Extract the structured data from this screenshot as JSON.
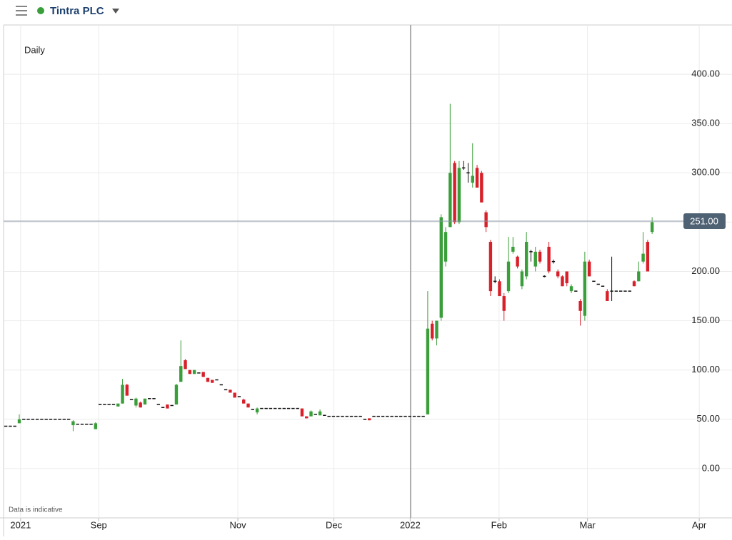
{
  "header": {
    "title": "Tintra PLC"
  },
  "chart_data": {
    "type": "candlestick",
    "subtitle": "Daily",
    "note": "Data is indicative",
    "up_color": "#3a9e3a",
    "down_color": "#d8202a",
    "flat_color": "#111111",
    "grid": true,
    "ylim": [
      -50,
      450
    ],
    "yticks": [
      {
        "value": 0,
        "label": "0.00"
      },
      {
        "value": 50,
        "label": "50.00"
      },
      {
        "value": 100,
        "label": "100.00"
      },
      {
        "value": 150,
        "label": "150.00"
      },
      {
        "value": 200,
        "label": "200.00"
      },
      {
        "value": 250,
        "label": "250.00"
      },
      {
        "value": 300,
        "label": "300.00"
      },
      {
        "value": 350,
        "label": "350.00"
      },
      {
        "value": 400,
        "label": "400.00"
      }
    ],
    "xlim": [
      -0.5,
      161
    ],
    "xticks": [
      {
        "value": 3.3,
        "label": "2021"
      },
      {
        "value": 20.7,
        "label": "Sep"
      },
      {
        "value": 51.7,
        "label": "Nov"
      },
      {
        "value": 73.1,
        "label": "Dec"
      },
      {
        "value": 90.1,
        "label": "2022"
      },
      {
        "value": 109.9,
        "label": "Feb"
      },
      {
        "value": 129.6,
        "label": "Mar"
      },
      {
        "value": 154.5,
        "label": "Apr"
      }
    ],
    "last_price": {
      "value": 251,
      "label": "251.00"
    },
    "ohlc": [
      [
        43,
        43,
        43,
        43
      ],
      [
        43,
        43,
        43,
        43
      ],
      [
        43,
        43,
        43,
        43
      ],
      [
        46,
        55,
        46,
        50
      ],
      [
        50,
        50,
        50,
        50
      ],
      [
        50,
        50,
        50,
        50
      ],
      [
        50,
        50,
        50,
        50
      ],
      [
        50,
        50,
        50,
        50
      ],
      [
        50,
        50,
        50,
        50
      ],
      [
        50,
        50,
        50,
        50
      ],
      [
        50,
        50,
        50,
        50
      ],
      [
        50,
        50,
        50,
        50
      ],
      [
        50,
        50,
        50,
        50
      ],
      [
        50,
        50,
        50,
        50
      ],
      [
        50,
        50,
        50,
        50
      ],
      [
        44,
        49,
        38,
        48
      ],
      [
        45,
        45,
        45,
        45
      ],
      [
        45,
        45,
        45,
        45
      ],
      [
        45,
        45,
        45,
        45
      ],
      [
        45,
        45,
        45,
        45
      ],
      [
        40,
        47,
        40,
        46
      ],
      [
        65,
        65,
        65,
        65
      ],
      [
        65,
        65,
        65,
        65
      ],
      [
        65,
        65,
        65,
        65
      ],
      [
        65,
        65,
        65,
        65
      ],
      [
        63,
        66,
        63,
        66
      ],
      [
        66,
        91,
        66,
        85
      ],
      [
        85,
        86,
        74,
        74
      ],
      [
        70,
        70,
        70,
        70
      ],
      [
        64,
        72,
        62,
        71
      ],
      [
        67,
        68,
        62,
        62
      ],
      [
        65,
        71,
        65,
        71
      ],
      [
        71,
        71,
        71,
        71
      ],
      [
        71,
        71,
        71,
        71
      ],
      [
        65,
        65,
        65,
        65
      ],
      [
        62,
        62,
        62,
        62
      ],
      [
        65,
        65,
        61,
        61
      ],
      [
        64,
        64,
        64,
        64
      ],
      [
        65,
        86,
        65,
        85
      ],
      [
        88,
        130,
        88,
        104
      ],
      [
        110,
        111,
        101,
        101
      ],
      [
        100,
        100,
        96,
        96
      ],
      [
        96,
        100,
        96,
        100
      ],
      [
        97,
        97,
        97,
        97
      ],
      [
        98,
        98,
        93,
        93
      ],
      [
        92,
        92,
        88,
        88
      ],
      [
        90,
        90,
        87,
        87
      ],
      [
        90,
        90,
        90,
        90
      ],
      [
        85,
        85,
        85,
        85
      ],
      [
        80,
        80,
        80,
        80
      ],
      [
        80,
        80,
        77,
        77
      ],
      [
        77,
        77,
        72,
        72
      ],
      [
        73,
        73,
        73,
        73
      ],
      [
        70,
        71,
        66,
        66
      ],
      [
        66,
        66,
        62,
        62
      ],
      [
        60,
        60,
        60,
        60
      ],
      [
        57,
        62,
        55,
        61
      ],
      [
        61,
        61,
        61,
        61
      ],
      [
        61,
        61,
        61,
        61
      ],
      [
        61,
        61,
        61,
        61
      ],
      [
        61,
        61,
        61,
        61
      ],
      [
        61,
        61,
        61,
        61
      ],
      [
        61,
        61,
        61,
        61
      ],
      [
        61,
        61,
        61,
        61
      ],
      [
        61,
        61,
        61,
        61
      ],
      [
        61,
        61,
        61,
        61
      ],
      [
        61,
        61,
        53,
        53
      ],
      [
        53,
        53,
        51,
        51
      ],
      [
        53,
        59,
        53,
        58
      ],
      [
        55,
        55,
        55,
        55
      ],
      [
        54,
        60,
        54,
        58
      ],
      [
        54,
        54,
        54,
        54
      ],
      [
        53,
        53,
        53,
        53
      ],
      [
        53,
        53,
        53,
        53
      ],
      [
        53,
        53,
        53,
        53
      ],
      [
        53,
        53,
        53,
        53
      ],
      [
        53,
        53,
        53,
        53
      ],
      [
        53,
        53,
        53,
        53
      ],
      [
        53,
        53,
        53,
        53
      ],
      [
        53,
        53,
        53,
        53
      ],
      [
        50,
        50,
        50,
        50
      ],
      [
        51,
        51,
        49,
        49
      ],
      [
        53,
        53,
        53,
        53
      ],
      [
        53,
        53,
        53,
        53
      ],
      [
        53,
        53,
        53,
        53
      ],
      [
        53,
        53,
        53,
        53
      ],
      [
        53,
        53,
        53,
        53
      ],
      [
        53,
        53,
        53,
        53
      ],
      [
        53,
        53,
        53,
        53
      ],
      [
        53,
        53,
        53,
        53
      ],
      [
        53,
        53,
        53,
        53
      ],
      [
        53,
        53,
        53,
        53
      ],
      [
        53,
        53,
        53,
        53
      ],
      [
        53,
        53,
        53,
        53
      ],
      [
        55,
        180,
        55,
        142
      ],
      [
        147,
        150,
        130,
        132
      ],
      [
        132,
        150,
        125,
        150
      ],
      [
        153,
        258,
        150,
        255
      ],
      [
        210,
        245,
        205,
        240
      ],
      [
        245,
        370,
        245,
        300
      ],
      [
        310,
        312,
        248,
        250
      ],
      [
        250,
        312,
        248,
        305
      ],
      [
        305,
        312,
        303,
        305
      ],
      [
        300,
        310,
        290,
        300
      ],
      [
        290,
        330,
        285,
        297
      ],
      [
        305,
        308,
        285,
        285
      ],
      [
        300,
        302,
        270,
        270
      ],
      [
        260,
        262,
        240,
        245
      ],
      [
        230,
        232,
        175,
        180
      ],
      [
        190,
        195,
        188,
        190
      ],
      [
        190,
        192,
        175,
        175
      ],
      [
        175,
        178,
        150,
        160
      ],
      [
        180,
        235,
        178,
        210
      ],
      [
        220,
        235,
        218,
        225
      ],
      [
        215,
        216,
        203,
        205
      ],
      [
        185,
        202,
        182,
        200
      ],
      [
        195,
        240,
        192,
        230
      ],
      [
        220,
        222,
        210,
        220
      ],
      [
        205,
        225,
        200,
        220
      ],
      [
        220,
        222,
        208,
        210
      ],
      [
        195,
        196,
        194,
        195
      ],
      [
        225,
        230,
        198,
        200
      ],
      [
        210,
        212,
        208,
        210
      ],
      [
        200,
        202,
        193,
        195
      ],
      [
        195,
        196,
        185,
        185
      ],
      [
        200,
        200,
        185,
        188
      ],
      [
        180,
        187,
        178,
        185
      ],
      [
        180,
        180,
        180,
        180
      ],
      [
        170,
        172,
        145,
        160
      ],
      [
        155,
        220,
        150,
        210
      ],
      [
        210,
        212,
        195,
        195
      ],
      [
        190,
        190,
        190,
        190
      ],
      [
        187,
        187,
        187,
        187
      ],
      [
        185,
        185,
        185,
        185
      ],
      [
        180,
        182,
        170,
        170
      ],
      [
        180,
        215,
        170,
        180
      ],
      [
        180,
        180,
        180,
        180
      ],
      [
        180,
        180,
        180,
        180
      ],
      [
        180,
        180,
        180,
        180
      ],
      [
        180,
        180,
        180,
        180
      ],
      [
        190,
        191,
        185,
        185
      ],
      [
        190,
        210,
        190,
        200
      ],
      [
        210,
        240,
        208,
        218
      ],
      [
        230,
        232,
        200,
        200
      ],
      [
        240,
        255,
        238,
        250
      ]
    ]
  }
}
